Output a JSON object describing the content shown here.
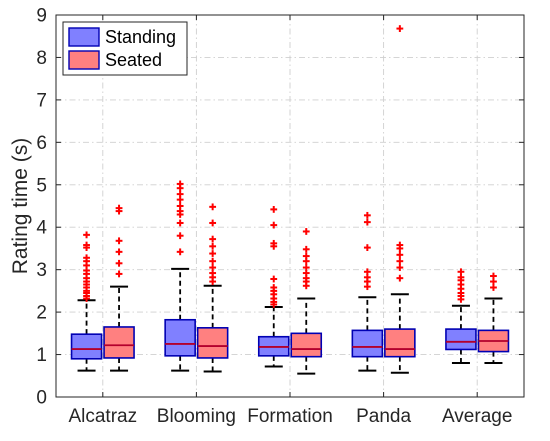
{
  "chart_data": {
    "type": "box",
    "ylabel": "Rating time (s)",
    "ylim": [
      0,
      9
    ],
    "yticks": [
      0,
      1,
      2,
      3,
      4,
      5,
      6,
      7,
      8,
      9
    ],
    "grid": true,
    "grid_style": "dash-dot",
    "legend_placement": "top-left",
    "categories": [
      "Alcatraz",
      "Blooming",
      "Formation",
      "Panda",
      "Average"
    ],
    "series": [
      {
        "name": "Standing",
        "fill": "#8080ff",
        "edge": "#0000b3",
        "median_color": "#b3002d",
        "boxes": [
          {
            "whisker_low": 0.62,
            "q1": 0.9,
            "median": 1.13,
            "q3": 1.48,
            "whisker_high": 2.28,
            "outliers": [
              2.32,
              2.38,
              2.45,
              2.5,
              2.58,
              2.65,
              2.72,
              2.8,
              2.9,
              2.98,
              3.1,
              3.2,
              3.28,
              3.52,
              3.58,
              3.82
            ]
          },
          {
            "whisker_low": 0.62,
            "q1": 0.97,
            "median": 1.25,
            "q3": 1.82,
            "whisker_high": 3.02,
            "outliers": [
              3.42,
              3.8,
              4.1,
              4.3,
              4.38,
              4.5,
              4.65,
              4.78,
              4.92,
              5.02
            ]
          },
          {
            "whisker_low": 0.72,
            "q1": 0.97,
            "median": 1.18,
            "q3": 1.42,
            "whisker_high": 2.12,
            "outliers": [
              2.18,
              2.24,
              2.32,
              2.42,
              2.5,
              2.58,
              2.78,
              3.55,
              3.62,
              4.05,
              4.42
            ]
          },
          {
            "whisker_low": 0.62,
            "q1": 0.95,
            "median": 1.18,
            "q3": 1.57,
            "whisker_high": 2.35,
            "outliers": [
              2.6,
              2.72,
              2.82,
              2.95,
              3.52,
              4.12,
              4.28
            ]
          },
          {
            "whisker_low": 0.8,
            "q1": 1.12,
            "median": 1.3,
            "q3": 1.6,
            "whisker_high": 2.15,
            "outliers": [
              2.3,
              2.38,
              2.45,
              2.55,
              2.65,
              2.75,
              2.82,
              2.95
            ]
          }
        ]
      },
      {
        "name": "Seated",
        "fill": "#ff8080",
        "edge": "#0000b3",
        "median_color": "#b3002d",
        "boxes": [
          {
            "whisker_low": 0.62,
            "q1": 0.92,
            "median": 1.22,
            "q3": 1.65,
            "whisker_high": 2.6,
            "outliers": [
              2.9,
              3.15,
              3.42,
              3.68,
              4.38,
              4.45
            ]
          },
          {
            "whisker_low": 0.6,
            "q1": 0.92,
            "median": 1.2,
            "q3": 1.63,
            "whisker_high": 2.62,
            "outliers": [
              2.72,
              2.82,
              2.92,
              3.05,
              3.2,
              3.38,
              3.55,
              3.72,
              4.1,
              4.48
            ]
          },
          {
            "whisker_low": 0.55,
            "q1": 0.95,
            "median": 1.13,
            "q3": 1.5,
            "whisker_high": 2.32,
            "outliers": [
              2.62,
              2.72,
              2.8,
              2.92,
              3.05,
              3.2,
              3.32,
              3.48,
              3.9
            ]
          },
          {
            "whisker_low": 0.57,
            "q1": 0.95,
            "median": 1.13,
            "q3": 1.6,
            "whisker_high": 2.42,
            "outliers": [
              2.8,
              3.05,
              3.2,
              3.35,
              3.5,
              3.58,
              8.68
            ]
          },
          {
            "whisker_low": 0.8,
            "q1": 1.07,
            "median": 1.32,
            "q3": 1.57,
            "whisker_high": 2.32,
            "outliers": [
              2.58,
              2.72,
              2.85
            ]
          }
        ]
      }
    ]
  }
}
